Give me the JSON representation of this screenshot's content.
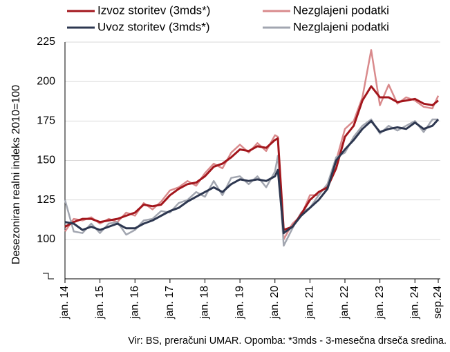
{
  "chart_data": {
    "type": "line",
    "ylabel": "Desezoniran realni indeks 2010=100",
    "source": "Vir: BS, preračuni UMAR. Opomba: *3mds - 3-mesečna drseča sredina.",
    "x": [
      0,
      3,
      6,
      9,
      12,
      15,
      18,
      21,
      24,
      27,
      30,
      33,
      36,
      39,
      42,
      45,
      48,
      51,
      54,
      57,
      60,
      63,
      66,
      69,
      72,
      73,
      75,
      78,
      81,
      84,
      87,
      90,
      93,
      96,
      99,
      102,
      105,
      108,
      111,
      114,
      117,
      120,
      123,
      126,
      128
    ],
    "xlim": [
      0,
      128
    ],
    "xticks": [
      {
        "value": 0,
        "label": "jan. 14"
      },
      {
        "value": 12,
        "label": "jan. 15"
      },
      {
        "value": 24,
        "label": "jan. 16"
      },
      {
        "value": 36,
        "label": "jan. 17"
      },
      {
        "value": 48,
        "label": "jan. 18"
      },
      {
        "value": 60,
        "label": "jan. 19"
      },
      {
        "value": 72,
        "label": "jan. 20"
      },
      {
        "value": 84,
        "label": "jan. 21"
      },
      {
        "value": 96,
        "label": "jan. 22"
      },
      {
        "value": 108,
        "label": "jan. 23"
      },
      {
        "value": 120,
        "label": "jan. 24"
      },
      {
        "value": 128,
        "label": "sep.24"
      }
    ],
    "ylim": [
      75,
      225
    ],
    "yticks": [
      100,
      125,
      150,
      175,
      200,
      225
    ],
    "grid": true,
    "series": [
      {
        "name": "Izvoz storitev (3mds*)",
        "color": "#a3161c",
        "width": 3,
        "values": [
          108,
          111,
          113,
          113,
          111,
          112,
          113,
          115,
          117,
          122,
          121,
          122,
          128,
          132,
          135,
          136,
          140,
          146,
          148,
          152,
          157,
          156,
          159,
          158,
          163,
          164,
          106,
          108,
          116,
          125,
          130,
          133,
          145,
          165,
          172,
          188,
          197,
          190,
          190,
          187,
          188,
          189,
          186,
          185,
          188
        ]
      },
      {
        "name": "Nezglajeni podatki",
        "color": "#d98a8c",
        "width": 2.5,
        "values": [
          105,
          113,
          112,
          114,
          110,
          113,
          111,
          117,
          115,
          123,
          119,
          124,
          131,
          133,
          137,
          134,
          142,
          148,
          145,
          155,
          160,
          155,
          161,
          156,
          166,
          165,
          100,
          110,
          115,
          128,
          128,
          135,
          150,
          170,
          175,
          190,
          220,
          185,
          198,
          186,
          190,
          188,
          184,
          183,
          191
        ]
      },
      {
        "name": "Uvoz storitev (3mds*)",
        "color": "#2d3750",
        "width": 3,
        "values": [
          111,
          110,
          106,
          108,
          106,
          108,
          110,
          107,
          107,
          110,
          112,
          115,
          118,
          120,
          124,
          127,
          130,
          133,
          130,
          135,
          138,
          137,
          138,
          137,
          140,
          144,
          104,
          108,
          115,
          120,
          125,
          132,
          150,
          157,
          163,
          170,
          175,
          168,
          170,
          171,
          170,
          174,
          170,
          172,
          176
        ]
      },
      {
        "name": "Nezglajeni podatki",
        "color": "#a2a6b0",
        "width": 2.5,
        "values": [
          125,
          105,
          104,
          110,
          104,
          110,
          111,
          103,
          106,
          112,
          113,
          118,
          117,
          123,
          125,
          130,
          127,
          137,
          128,
          139,
          140,
          135,
          140,
          133,
          143,
          153,
          96,
          107,
          117,
          120,
          128,
          135,
          152,
          155,
          165,
          172,
          176,
          167,
          172,
          169,
          172,
          175,
          168,
          176,
          176
        ]
      }
    ]
  }
}
